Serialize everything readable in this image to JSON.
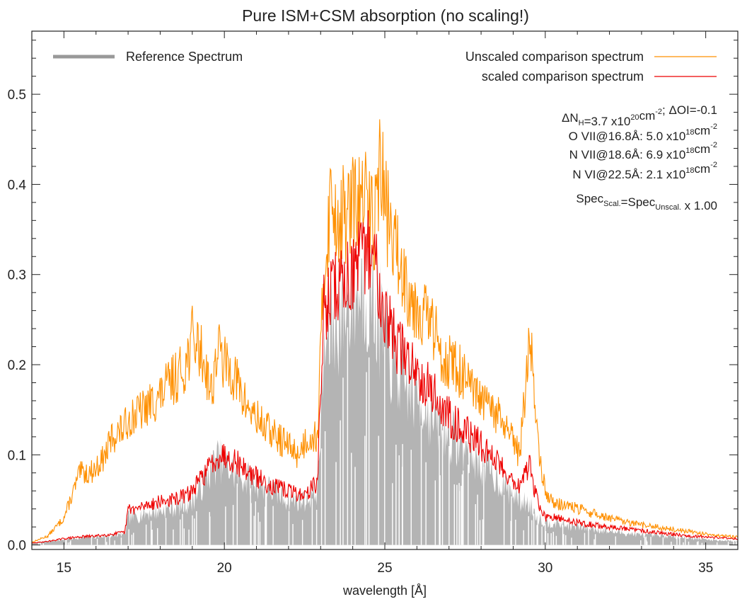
{
  "chart_data": {
    "type": "line",
    "title": "Pure ISM+CSM absorption (no scaling!)",
    "xlabel": "wavelength [Å]",
    "ylabel": "",
    "xlim": [
      14,
      36
    ],
    "ylim": [
      -0.005,
      0.57
    ],
    "x_ticks": [
      15,
      20,
      25,
      30,
      35
    ],
    "x_tick_labels": [
      "15",
      "20",
      "25",
      "30",
      "35"
    ],
    "y_ticks": [
      0.0,
      0.1,
      0.2,
      0.3,
      0.4,
      0.5
    ],
    "y_tick_labels": [
      "0.0",
      "0.1",
      "0.2",
      "0.3",
      "0.4",
      "0.5"
    ],
    "grid": false,
    "legend": [
      {
        "label": "Reference Spectrum",
        "color": "#999999",
        "position": "top-left"
      },
      {
        "label": "Unscaled comparison spectrum",
        "color": "#ff9000",
        "position": "top-right"
      },
      {
        "label": "scaled comparison spectrum",
        "color": "#ee0000",
        "position": "top-right"
      }
    ],
    "annotations": [
      {
        "parts": [
          [
            "ΔN",
            ""
          ],
          [
            "H",
            "sub"
          ],
          [
            "=3.7 x10",
            ""
          ],
          [
            "20",
            "sup"
          ],
          [
            "cm",
            ""
          ],
          [
            "-2",
            "sup"
          ],
          [
            "; ΔOI=-0.1",
            ""
          ]
        ]
      },
      {
        "parts": [
          [
            "O VII@16.8Å: 5.0 x10",
            ""
          ],
          [
            "18",
            "sup"
          ],
          [
            "cm",
            ""
          ],
          [
            "-2",
            "sup"
          ]
        ]
      },
      {
        "parts": [
          [
            "N VII@18.6Å: 6.9 x10",
            ""
          ],
          [
            "18",
            "sup"
          ],
          [
            "cm",
            ""
          ],
          [
            "-2",
            "sup"
          ]
        ]
      },
      {
        "parts": [
          [
            "N VI@22.5Å: 2.1 x10",
            ""
          ],
          [
            "18",
            "sup"
          ],
          [
            "cm",
            ""
          ],
          [
            "-2",
            "sup"
          ]
        ]
      },
      {
        "parts": [
          [
            "Spec",
            ""
          ],
          [
            "Scal.",
            "sub"
          ],
          [
            "=Spec",
            ""
          ],
          [
            "Unscal.",
            "sub"
          ],
          [
            " x 1.00",
            ""
          ]
        ]
      }
    ],
    "series": [
      {
        "name": "Reference Spectrum",
        "color": "#b4b4b4",
        "style": "filled-noisy",
        "x": [
          14.0,
          14.5,
          15.0,
          15.5,
          16.0,
          16.5,
          16.9,
          17.0,
          17.5,
          18.0,
          18.5,
          18.8,
          19.0,
          19.2,
          19.5,
          19.8,
          20.0,
          20.3,
          20.6,
          21.0,
          21.5,
          22.0,
          22.5,
          22.9,
          23.1,
          23.3,
          23.5,
          23.8,
          24.0,
          24.3,
          24.6,
          24.9,
          25.0,
          25.3,
          25.6,
          25.9,
          26.2,
          26.5,
          26.8,
          27.1,
          27.4,
          27.7,
          28.0,
          28.3,
          28.6,
          28.9,
          29.2,
          29.5,
          29.8,
          30.0,
          30.3,
          30.6,
          31.0,
          31.5,
          32.0,
          32.5,
          33.0,
          33.5,
          34.0,
          34.5,
          35.0,
          35.5,
          36.0
        ],
        "y": [
          0.002,
          0.004,
          0.006,
          0.008,
          0.009,
          0.01,
          0.012,
          0.03,
          0.035,
          0.038,
          0.042,
          0.045,
          0.05,
          0.06,
          0.08,
          0.095,
          0.09,
          0.08,
          0.075,
          0.07,
          0.06,
          0.05,
          0.05,
          0.06,
          0.21,
          0.24,
          0.25,
          0.27,
          0.28,
          0.29,
          0.28,
          0.24,
          0.23,
          0.2,
          0.18,
          0.17,
          0.16,
          0.14,
          0.13,
          0.12,
          0.11,
          0.1,
          0.09,
          0.08,
          0.07,
          0.06,
          0.05,
          0.045,
          0.03,
          0.025,
          0.025,
          0.022,
          0.02,
          0.018,
          0.015,
          0.013,
          0.011,
          0.01,
          0.009,
          0.008,
          0.006,
          0.005,
          0.004
        ]
      },
      {
        "name": "Unscaled comparison spectrum",
        "color": "#ff9000",
        "style": "line-noisy",
        "x": [
          14.0,
          14.5,
          15.0,
          15.3,
          15.5,
          15.8,
          16.0,
          16.3,
          16.5,
          16.9,
          17.0,
          17.5,
          17.8,
          18.0,
          18.3,
          18.6,
          18.8,
          19.0,
          19.2,
          19.4,
          19.6,
          19.8,
          20.0,
          20.3,
          20.6,
          21.0,
          21.3,
          21.6,
          22.0,
          22.3,
          22.6,
          22.9,
          23.1,
          23.3,
          23.6,
          23.9,
          24.1,
          24.4,
          24.7,
          24.85,
          25.0,
          25.3,
          25.6,
          25.9,
          26.2,
          26.5,
          26.8,
          27.1,
          27.4,
          27.7,
          28.0,
          28.3,
          28.6,
          28.9,
          29.2,
          29.5,
          29.6,
          29.8,
          30.0,
          30.3,
          30.6,
          31.0,
          31.5,
          32.0,
          32.5,
          33.0,
          33.5,
          34.0,
          34.5,
          35.0,
          35.5,
          36.0
        ],
        "y": [
          0.003,
          0.01,
          0.03,
          0.06,
          0.08,
          0.08,
          0.085,
          0.1,
          0.12,
          0.13,
          0.14,
          0.15,
          0.16,
          0.165,
          0.18,
          0.19,
          0.2,
          0.23,
          0.22,
          0.2,
          0.17,
          0.22,
          0.2,
          0.19,
          0.16,
          0.14,
          0.13,
          0.12,
          0.11,
          0.1,
          0.12,
          0.12,
          0.3,
          0.38,
          0.36,
          0.37,
          0.38,
          0.38,
          0.36,
          0.43,
          0.38,
          0.33,
          0.3,
          0.27,
          0.26,
          0.24,
          0.21,
          0.2,
          0.19,
          0.17,
          0.16,
          0.15,
          0.14,
          0.12,
          0.1,
          0.22,
          0.21,
          0.1,
          0.06,
          0.045,
          0.045,
          0.04,
          0.035,
          0.03,
          0.025,
          0.022,
          0.02,
          0.017,
          0.015,
          0.012,
          0.01,
          0.009
        ]
      },
      {
        "name": "scaled comparison spectrum",
        "color": "#ee0000",
        "style": "line-noisy",
        "x": [
          14.0,
          14.5,
          15.0,
          15.5,
          16.0,
          16.5,
          16.9,
          17.0,
          17.3,
          17.6,
          18.0,
          18.4,
          18.8,
          19.0,
          19.2,
          19.5,
          19.8,
          20.0,
          20.3,
          20.6,
          21.0,
          21.5,
          22.0,
          22.5,
          22.9,
          23.1,
          23.3,
          23.6,
          23.9,
          24.2,
          24.5,
          24.8,
          25.0,
          25.3,
          25.6,
          25.9,
          26.2,
          26.5,
          26.8,
          27.1,
          27.4,
          27.7,
          28.0,
          28.3,
          28.6,
          28.9,
          29.2,
          29.5,
          29.6,
          29.8,
          30.0,
          30.3,
          30.6,
          31.0,
          31.5,
          32.0,
          32.5,
          33.0,
          33.5,
          34.0,
          34.5,
          35.0,
          35.5,
          36.0
        ],
        "y": [
          0.002,
          0.004,
          0.007,
          0.009,
          0.01,
          0.012,
          0.014,
          0.04,
          0.04,
          0.045,
          0.048,
          0.05,
          0.055,
          0.06,
          0.07,
          0.085,
          0.1,
          0.1,
          0.095,
          0.085,
          0.075,
          0.065,
          0.06,
          0.055,
          0.07,
          0.26,
          0.28,
          0.29,
          0.3,
          0.31,
          0.33,
          0.3,
          0.26,
          0.23,
          0.21,
          0.2,
          0.185,
          0.17,
          0.15,
          0.14,
          0.13,
          0.12,
          0.11,
          0.1,
          0.09,
          0.075,
          0.065,
          0.09,
          0.07,
          0.045,
          0.03,
          0.03,
          0.028,
          0.025,
          0.022,
          0.02,
          0.018,
          0.016,
          0.014,
          0.012,
          0.01,
          0.009,
          0.008,
          0.007
        ]
      }
    ]
  }
}
